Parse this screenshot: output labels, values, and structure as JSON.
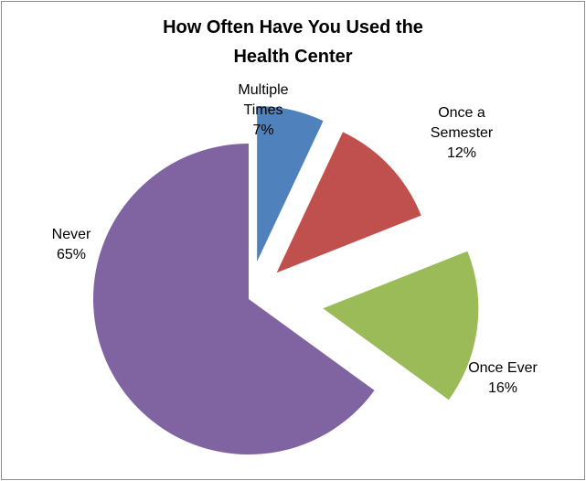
{
  "chart_data": {
    "type": "pie",
    "title_lines": [
      "How Often Have You Used the",
      "Health Center"
    ],
    "slices": [
      {
        "label_lines": [
          "Multiple",
          "Times"
        ],
        "value_text": "7%",
        "value": 7,
        "color": "#4f81bd"
      },
      {
        "label_lines": [
          "Once a",
          "Semester"
        ],
        "value_text": "12%",
        "value": 12,
        "color": "#c0504d"
      },
      {
        "label_lines": [
          "Once Ever"
        ],
        "value_text": "16%",
        "value": 16,
        "color": "#9bbb59"
      },
      {
        "label_lines": [
          "Never"
        ],
        "value_text": "65%",
        "value": 65,
        "color": "#8064a2"
      }
    ],
    "exploded": true
  }
}
